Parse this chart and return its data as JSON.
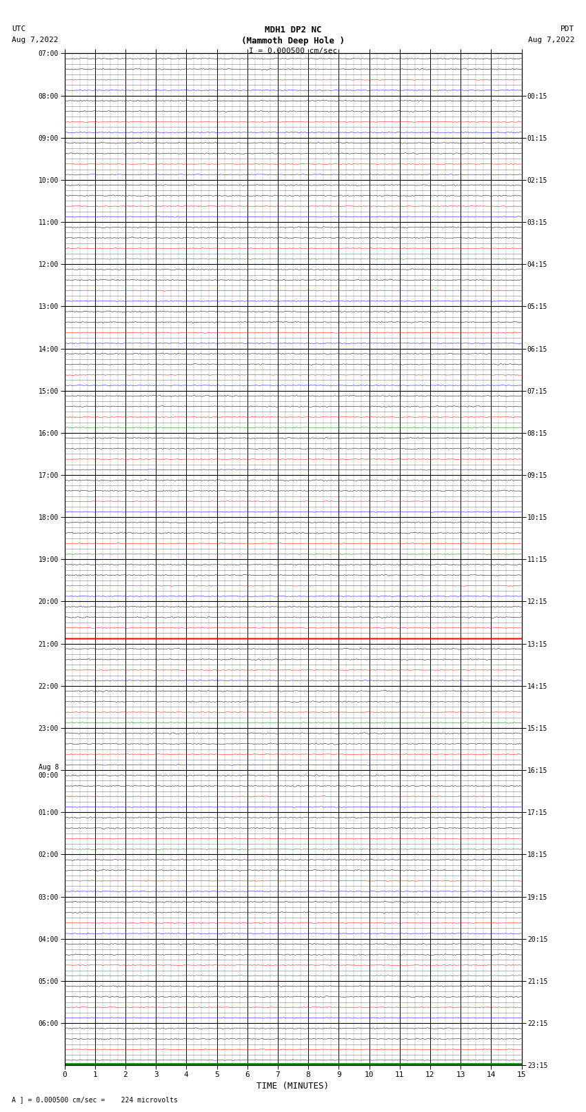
{
  "title_line1": "MDH1 DP2 NC",
  "title_line2": "(Mammoth Deep Hole )",
  "title_line3": "I = 0.000500 cm/sec",
  "left_label_top": "UTC",
  "left_label_date": "Aug 7,2022",
  "right_label_top": "PDT",
  "right_label_date": "Aug 7,2022",
  "bottom_label": "TIME (MINUTES)",
  "bottom_note": "A ] = 0.000500 cm/sec =    224 microvolts",
  "x_max": 15,
  "background_color": "#ffffff",
  "grid_color_major": "#000000",
  "grid_color_minor": "#888888",
  "trace_color_black": "#000000",
  "trace_color_red": "#ff0000",
  "trace_color_blue": "#0000ff",
  "trace_color_green": "#008000",
  "num_hours": 24,
  "subrows_per_hour": 4,
  "left_hour_labels": [
    "07:00",
    "08:00",
    "09:00",
    "10:00",
    "11:00",
    "12:00",
    "13:00",
    "14:00",
    "15:00",
    "16:00",
    "17:00",
    "18:00",
    "19:00",
    "20:00",
    "21:00",
    "22:00",
    "23:00",
    "Aug 8\n00:00",
    "01:00",
    "02:00",
    "03:00",
    "04:00",
    "05:00",
    "06:00"
  ],
  "right_hour_labels": [
    "00:15",
    "01:15",
    "02:15",
    "03:15",
    "04:15",
    "05:15",
    "06:15",
    "07:15",
    "08:15",
    "09:15",
    "10:15",
    "11:15",
    "12:15",
    "13:15",
    "14:15",
    "15:15",
    "16:15",
    "17:15",
    "18:15",
    "19:15",
    "20:15",
    "21:15",
    "22:15",
    "23:15"
  ],
  "colored_rows": {
    "black_rows_pattern": "all",
    "red_dense_rows": [
      4,
      5,
      44,
      45,
      53,
      54,
      84,
      85
    ],
    "blue_dense_rows": [
      6,
      7,
      46,
      47,
      55,
      56
    ],
    "green_dense_rows": [
      8,
      9,
      48,
      49
    ],
    "special_red_solid_row": 55,
    "special_blue_solid_row": 54
  }
}
